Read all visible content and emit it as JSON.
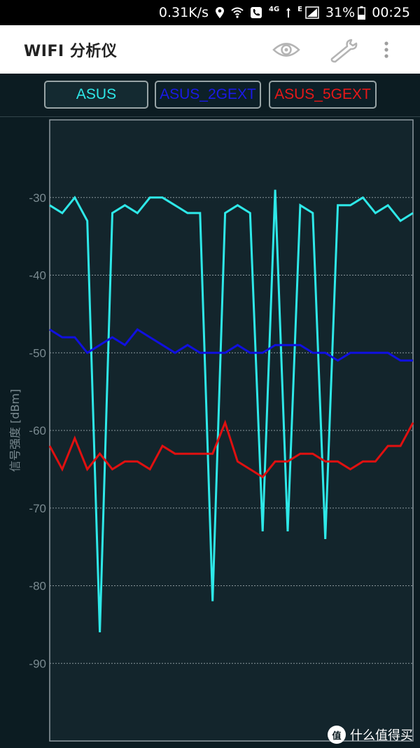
{
  "status_bar": {
    "speed": "0.31K/s",
    "network_label": "4G",
    "signal_label": "E",
    "battery": "31%",
    "time": "00:25",
    "icons": [
      "location-icon",
      "wifi-icon",
      "phone-icon",
      "signal-icon",
      "battery-icon"
    ]
  },
  "app_bar": {
    "title": "WIFI 分析仪",
    "icons": [
      "eye-icon",
      "wrench-icon",
      "more-vert-icon"
    ]
  },
  "legend": [
    {
      "label": "ASUS",
      "color": "#2ee8e8"
    },
    {
      "label": "ASUS_2GEXT",
      "color": "#1010e0"
    },
    {
      "label": "ASUS_5GEXT",
      "color": "#e01010"
    }
  ],
  "watermark": {
    "text": "什么值得买",
    "logo": "值"
  },
  "chart_data": {
    "type": "line",
    "ylabel": "信号强度 [dBm]",
    "xlabel": "",
    "ylim": [
      -100,
      -20
    ],
    "yticks": [
      -30,
      -40,
      -50,
      -60,
      -70,
      -80,
      -90
    ],
    "ytick_labels": [
      "-30",
      "-40",
      "-50",
      "-60",
      "-70",
      "-80",
      "-90"
    ],
    "grid": true,
    "x": [
      0,
      1,
      2,
      3,
      4,
      5,
      6,
      7,
      8,
      9,
      10,
      11,
      12,
      13,
      14,
      15,
      16,
      17,
      18,
      19,
      20,
      21,
      22,
      23,
      24,
      25,
      26,
      27,
      28,
      29
    ],
    "series": [
      {
        "name": "ASUS",
        "color": "#2ee8e8",
        "values": [
          -31,
          -32,
          -30,
          -33,
          -86,
          -32,
          -31,
          -32,
          -30,
          -30,
          -31,
          -32,
          -32,
          -82,
          -32,
          -31,
          -32,
          -73,
          -29,
          -73,
          -31,
          -32,
          -74,
          -31,
          -31,
          -30,
          -32,
          -31,
          -33,
          -32
        ]
      },
      {
        "name": "ASUS_2GEXT",
        "color": "#1010e0",
        "values": [
          -47,
          -48,
          -48,
          -50,
          -49,
          -48,
          -49,
          -47,
          -48,
          -49,
          -50,
          -49,
          -50,
          -50,
          -50,
          -49,
          -50,
          -50,
          -49,
          -49,
          -49,
          -50,
          -50,
          -51,
          -50,
          -50,
          -50,
          -50,
          -51,
          -51
        ]
      },
      {
        "name": "ASUS_5GEXT",
        "color": "#e01010",
        "values": [
          -62,
          -65,
          -61,
          -65,
          -63,
          -65,
          -64,
          -64,
          -65,
          -62,
          -63,
          -63,
          -63,
          -63,
          -59,
          -64,
          -65,
          -66,
          -64,
          -64,
          -63,
          -63,
          -64,
          -64,
          -65,
          -64,
          -64,
          -62,
          -62,
          -59
        ]
      }
    ]
  }
}
